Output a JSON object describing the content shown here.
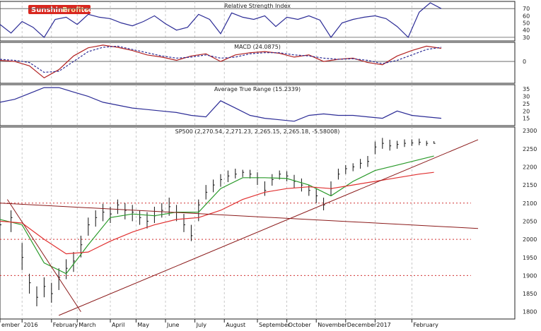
{
  "logo": {
    "part1": "Sunshine",
    "part2": "Profits",
    "part3": ".com"
  },
  "chart_data": [
    {
      "type": "line",
      "title": "Relative Strength Index",
      "ylim": [
        25,
        80
      ],
      "yticks": [
        30,
        40,
        50,
        60,
        70
      ],
      "reference_lines": [
        30,
        70
      ],
      "series": [
        {
          "color": "#2c2c96",
          "x": [
            0,
            3,
            6,
            9,
            12,
            15,
            18,
            21,
            24,
            27,
            30,
            33,
            36,
            39,
            42,
            45,
            48,
            51,
            54,
            57,
            60,
            63,
            66,
            69,
            72,
            75,
            78,
            81,
            84,
            87,
            90,
            93,
            96,
            99,
            102,
            105,
            108,
            111,
            114,
            117,
            120
          ],
          "values": [
            48,
            36,
            52,
            44,
            30,
            55,
            58,
            48,
            62,
            58,
            56,
            50,
            46,
            52,
            60,
            49,
            40,
            44,
            62,
            55,
            35,
            64,
            58,
            55,
            60,
            45,
            58,
            55,
            60,
            54,
            30,
            50,
            55,
            58,
            60,
            56,
            45,
            30,
            65,
            78,
            70
          ]
        }
      ]
    },
    {
      "type": "line",
      "title": "MACD (24.0875)",
      "ylim": [
        -40,
        35
      ],
      "yticks": [
        0
      ],
      "reference_lines": [
        0
      ],
      "series": [
        {
          "color": "#b22222",
          "x": [
            0,
            4,
            8,
            12,
            16,
            20,
            24,
            28,
            32,
            36,
            40,
            44,
            48,
            52,
            56,
            60,
            64,
            68,
            72,
            76,
            80,
            84,
            88,
            92,
            96,
            100,
            104,
            108,
            112,
            116,
            120
          ],
          "values": [
            2,
            0,
            -8,
            -30,
            -15,
            10,
            25,
            30,
            26,
            20,
            12,
            8,
            2,
            10,
            14,
            0,
            12,
            16,
            18,
            15,
            8,
            12,
            0,
            4,
            6,
            -2,
            -6,
            10,
            20,
            28,
            24
          ]
        },
        {
          "color": "#2c2c96",
          "dashed": true,
          "x": [
            0,
            4,
            8,
            12,
            16,
            20,
            24,
            28,
            32,
            36,
            40,
            44,
            48,
            52,
            56,
            60,
            64,
            68,
            72,
            76,
            80,
            84,
            88,
            92,
            96,
            100,
            104,
            108,
            112,
            116,
            120
          ],
          "values": [
            4,
            2,
            -2,
            -20,
            -18,
            0,
            18,
            26,
            28,
            22,
            16,
            10,
            6,
            8,
            12,
            6,
            8,
            14,
            16,
            16,
            12,
            10,
            6,
            4,
            5,
            2,
            -4,
            2,
            12,
            22,
            26
          ]
        }
      ]
    },
    {
      "type": "line",
      "title": "Average True Range (15.2339)",
      "ylim": [
        10,
        38
      ],
      "yticks": [
        15,
        20,
        25,
        30,
        35
      ],
      "series": [
        {
          "color": "#2c2c96",
          "x": [
            0,
            4,
            8,
            12,
            16,
            20,
            24,
            28,
            32,
            36,
            40,
            44,
            48,
            52,
            56,
            60,
            64,
            68,
            72,
            76,
            80,
            84,
            88,
            92,
            96,
            100,
            104,
            108,
            112,
            116,
            120
          ],
          "values": [
            26,
            28,
            32,
            36,
            36,
            33,
            30,
            26,
            24,
            22,
            21,
            20,
            19,
            17,
            16,
            27,
            22,
            17,
            15,
            14,
            13,
            17,
            18,
            17,
            17,
            16,
            15,
            20,
            17,
            16,
            15
          ]
        }
      ]
    },
    {
      "type": "line",
      "title": "SP500 (2,270.54, 2,271.23, 2,265.15, 2,265.18, -5.58008)",
      "ylim": [
        1780,
        2310
      ],
      "yticks": [
        1800,
        1850,
        1900,
        1950,
        2000,
        2050,
        2100,
        2150,
        2200,
        2250,
        2300
      ],
      "price_bars": {
        "color": "#111111",
        "x": [
          0,
          3,
          6,
          8,
          10,
          12,
          14,
          16,
          18,
          20,
          22,
          24,
          26,
          28,
          30,
          32,
          34,
          36,
          38,
          40,
          42,
          44,
          46,
          48,
          50,
          52,
          54,
          56,
          58,
          60,
          62,
          64,
          66,
          68,
          70,
          72,
          74,
          76,
          78,
          80,
          82,
          84,
          86,
          88,
          90,
          92,
          94,
          96,
          98,
          100,
          102,
          104,
          106,
          108,
          110,
          112,
          114,
          116,
          118
        ],
        "close": [
          2040,
          2060,
          1950,
          1880,
          1840,
          1870,
          1850,
          1895,
          1920,
          1940,
          1985,
          2040,
          2060,
          2075,
          2070,
          2095,
          2080,
          2075,
          2060,
          2050,
          2065,
          2080,
          2090,
          2075,
          2040,
          2010,
          2095,
          2130,
          2150,
          2165,
          2175,
          2180,
          2185,
          2180,
          2170,
          2135,
          2165,
          2180,
          2175,
          2160,
          2150,
          2135,
          2120,
          2095,
          2140,
          2180,
          2195,
          2200,
          2210,
          2215,
          2255,
          2265,
          2258,
          2262,
          2265,
          2266,
          2268,
          2265,
          2265
        ],
        "high": [
          2060,
          2080,
          1990,
          1905,
          1870,
          1895,
          1880,
          1920,
          1945,
          1965,
          2010,
          2060,
          2080,
          2098,
          2090,
          2110,
          2100,
          2095,
          2080,
          2075,
          2090,
          2100,
          2115,
          2095,
          2070,
          2040,
          2110,
          2150,
          2165,
          2180,
          2190,
          2195,
          2192,
          2192,
          2185,
          2160,
          2180,
          2190,
          2188,
          2178,
          2168,
          2150,
          2140,
          2115,
          2160,
          2195,
          2205,
          2210,
          2222,
          2230,
          2270,
          2280,
          2275,
          2272,
          2276,
          2276,
          2278,
          2272,
          2271
        ],
        "low": [
          2005,
          2020,
          1915,
          1850,
          1815,
          1840,
          1825,
          1860,
          1890,
          1910,
          1950,
          2010,
          2035,
          2050,
          2045,
          2070,
          2055,
          2050,
          2040,
          2030,
          2045,
          2060,
          2065,
          2050,
          2020,
          1995,
          2050,
          2110,
          2130,
          2145,
          2158,
          2168,
          2172,
          2168,
          2150,
          2120,
          2148,
          2165,
          2160,
          2142,
          2132,
          2120,
          2100,
          2080,
          2120,
          2165,
          2180,
          2188,
          2195,
          2200,
          2235,
          2250,
          2245,
          2250,
          2255,
          2258,
          2260,
          2258,
          2264
        ]
      },
      "series": [
        {
          "color": "#2a9a2a",
          "x": [
            0,
            6,
            12,
            18,
            24,
            30,
            36,
            42,
            48,
            54,
            60,
            66,
            72,
            78,
            84,
            90,
            96,
            102,
            108,
            114,
            118
          ],
          "values": [
            2055,
            2040,
            1935,
            1905,
            1985,
            2060,
            2070,
            2065,
            2075,
            2075,
            2140,
            2170,
            2170,
            2168,
            2150,
            2120,
            2160,
            2190,
            2205,
            2220,
            2230
          ]
        },
        {
          "color": "#e03030",
          "x": [
            0,
            6,
            12,
            18,
            24,
            30,
            36,
            42,
            48,
            54,
            60,
            66,
            72,
            78,
            84,
            90,
            96,
            102,
            108,
            114,
            118
          ],
          "values": [
            2050,
            2045,
            2000,
            1960,
            1965,
            1995,
            2020,
            2040,
            2055,
            2060,
            2080,
            2110,
            2130,
            2140,
            2145,
            2140,
            2150,
            2160,
            2170,
            2180,
            2185
          ]
        }
      ],
      "horizontal_levels": [
        2100,
        2000,
        1900
      ],
      "trend_lines": [
        {
          "color": "#8b1a1a",
          "from": [
            0,
            2100
          ],
          "to": [
            130,
            2030
          ]
        },
        {
          "color": "#8b1a1a",
          "from": [
            16,
            1790
          ],
          "to": [
            130,
            2275
          ]
        },
        {
          "color": "#8b1a1a",
          "from": [
            2,
            2110
          ],
          "to": [
            22,
            1800
          ]
        }
      ]
    }
  ],
  "x_axis": {
    "labels": [
      "ember",
      "2016",
      "February",
      "March",
      "April",
      "May",
      "June",
      "July",
      "August",
      "September",
      "October",
      "November",
      "December",
      "2017",
      "February"
    ],
    "positions": [
      0,
      6,
      14,
      21,
      30,
      37,
      45,
      53,
      61,
      70,
      78,
      86,
      94,
      102,
      112
    ]
  }
}
